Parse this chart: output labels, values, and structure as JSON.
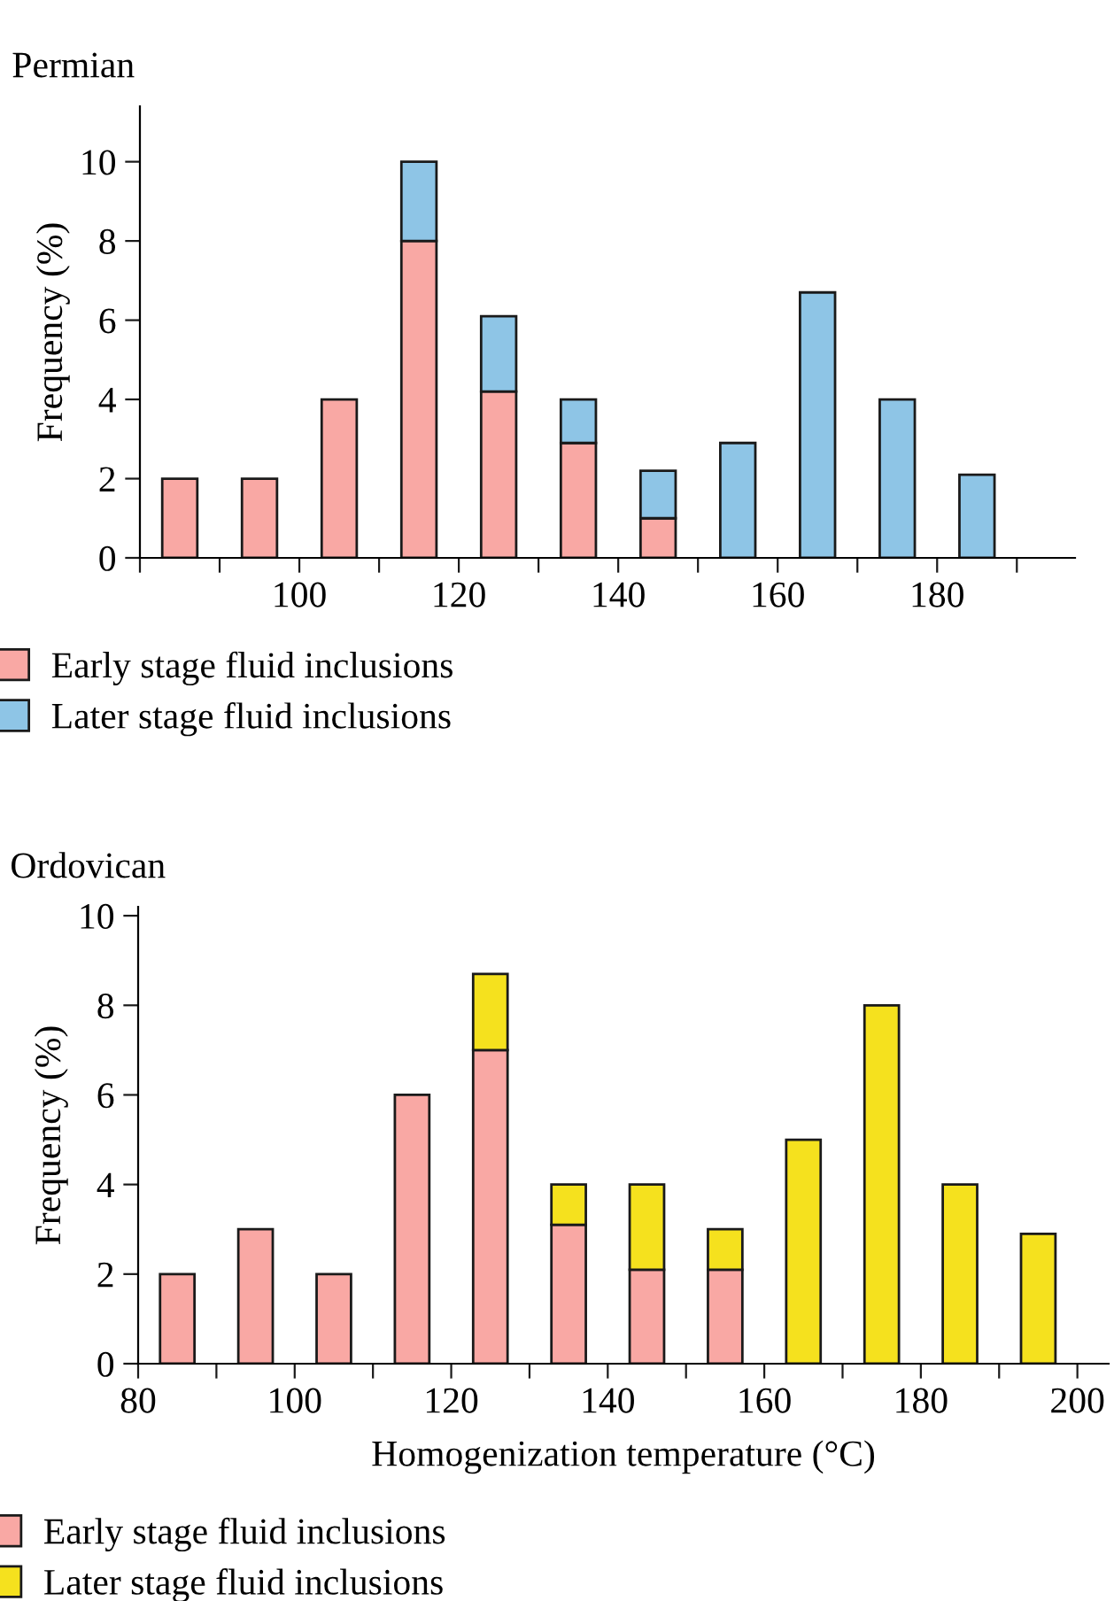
{
  "chart_data": [
    {
      "type": "bar",
      "title": "Permian",
      "ylabel": "Frequency (%)",
      "stacked": true,
      "legend": "bottom",
      "x": [
        85,
        95,
        105,
        115,
        125,
        135,
        145,
        155,
        165,
        175,
        185
      ],
      "series": [
        {
          "name": "Early stage fluid inclusions",
          "color": "#f9a8a4",
          "values": [
            2,
            2,
            4,
            8,
            4.2,
            2.9,
            1,
            null,
            null,
            null,
            null
          ]
        },
        {
          "name": "Later stage fluid inclusions",
          "color": "#8ec5e6",
          "values": [
            null,
            null,
            null,
            2,
            1.9,
            1.1,
            1.2,
            2.9,
            6.7,
            4,
            2.1
          ]
        }
      ],
      "xlim": [
        80,
        197.3
      ],
      "ylim": [
        0,
        11.4
      ],
      "xticks": [
        {
          "value": 80,
          "label": null
        },
        {
          "value": 90,
          "label": null
        },
        100,
        {
          "value": 110,
          "label": null
        },
        120,
        {
          "value": 130,
          "label": null
        },
        140,
        {
          "value": 150,
          "label": null
        },
        160,
        {
          "value": 170,
          "label": null
        },
        180,
        {
          "value": 190,
          "label": null
        }
      ],
      "yticks": [
        0,
        2,
        4,
        6,
        8,
        10
      ]
    },
    {
      "type": "bar",
      "title": "Ordovican",
      "xlabel": "Homogenization temperature (°C)",
      "ylabel": "Frequency (%)",
      "stacked": true,
      "legend": "bottom",
      "x": [
        85,
        95,
        105,
        115,
        125,
        135,
        145,
        155,
        165,
        175,
        185,
        195
      ],
      "series": [
        {
          "name": "Early stage fluid inclusions",
          "color": "#f9a8a4",
          "values": [
            2,
            3,
            2,
            6,
            7,
            3.1,
            2.1,
            2.1,
            null,
            null,
            null,
            null
          ]
        },
        {
          "name": "Later stage fluid inclusions",
          "color": "#f5e11e",
          "values": [
            null,
            null,
            null,
            null,
            1.7,
            0.9,
            1.9,
            0.9,
            5,
            8,
            4,
            2.9
          ]
        }
      ],
      "xlim": [
        80,
        204
      ],
      "ylim": [
        0,
        10.2
      ],
      "xticks": [
        80,
        {
          "value": 90,
          "label": null
        },
        100,
        {
          "value": 110,
          "label": null
        },
        120,
        {
          "value": 130,
          "label": null
        },
        140,
        {
          "value": 150,
          "label": null
        },
        160,
        {
          "value": 170,
          "label": null
        },
        180,
        {
          "value": 190,
          "label": null
        },
        200
      ],
      "yticks": [
        0,
        2,
        4,
        6,
        8,
        10
      ]
    }
  ]
}
